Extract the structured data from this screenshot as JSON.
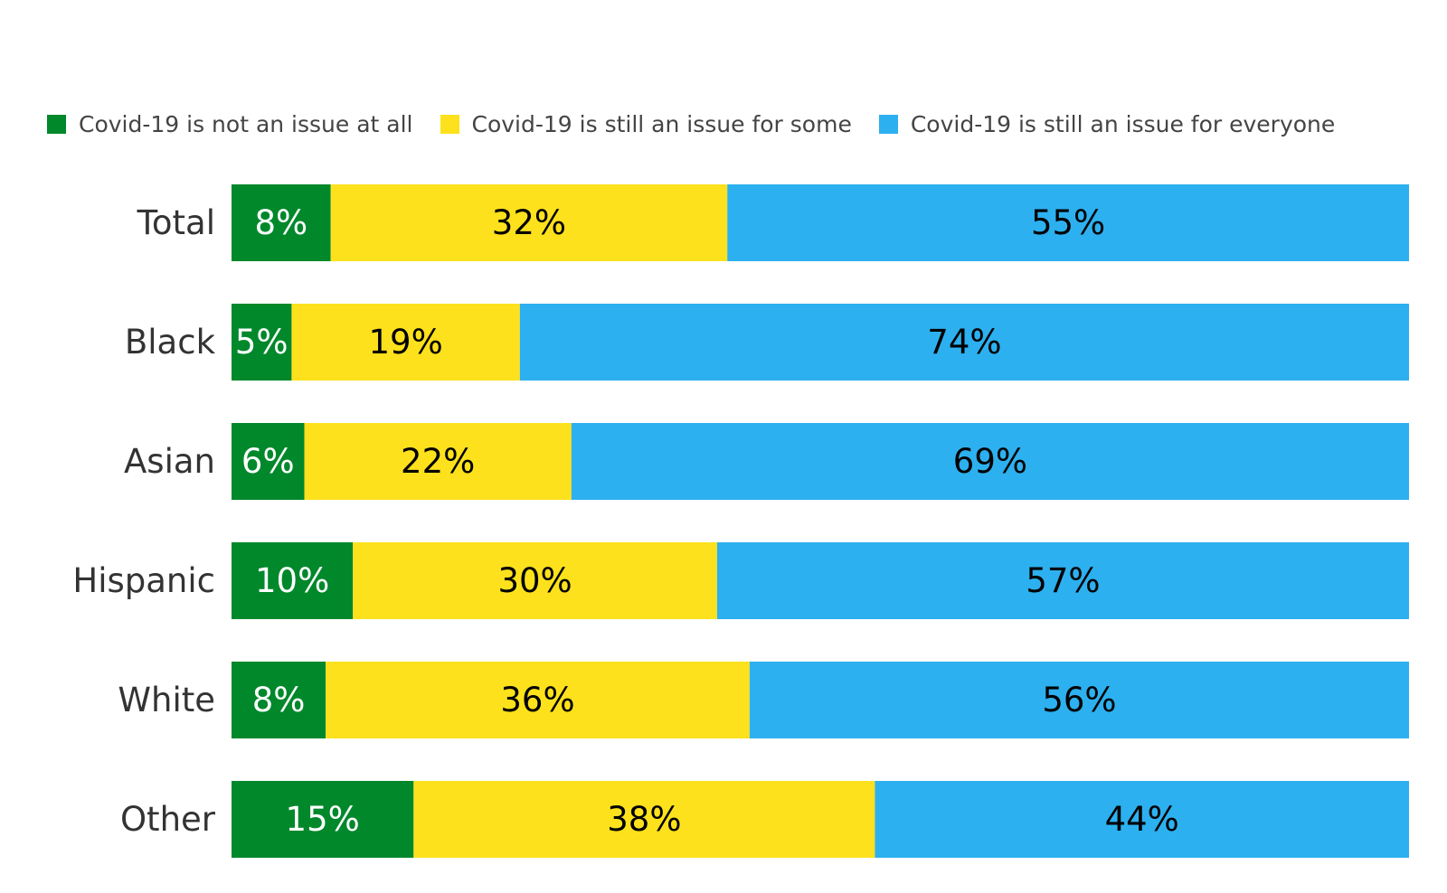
{
  "legend": [
    {
      "label": "Covid-19 is not an issue at all",
      "color": "#00882b"
    },
    {
      "label": "Covid-19 is still an issue for some",
      "color": "#fde11c"
    },
    {
      "label": "Covid-19 is still an issue for everyone",
      "color": "#2db0ef"
    }
  ],
  "chart_data": {
    "type": "bar",
    "orientation": "horizontal",
    "stacked": true,
    "categories": [
      "Total",
      "Black",
      "Asian",
      "Hispanic",
      "White",
      "Other"
    ],
    "series": [
      {
        "name": "Covid-19 is not an issue at all",
        "values": [
          8,
          5,
          6,
          10,
          8,
          15
        ],
        "color": "#00882b",
        "label_color": "#ffffff"
      },
      {
        "name": "Covid-19 is still an issue for some",
        "values": [
          32,
          19,
          22,
          30,
          36,
          38
        ],
        "color": "#fde11c",
        "label_color": "#000000"
      },
      {
        "name": "Covid-19 is still an issue for everyone",
        "values": [
          55,
          74,
          69,
          57,
          56,
          44
        ],
        "color": "#2db0ef",
        "label_color": "#000000"
      }
    ],
    "data_labels": [
      [
        "8%",
        "5%",
        "6%",
        "10%",
        "8%",
        "15%"
      ],
      [
        "32%",
        "19%",
        "22%",
        "30%",
        "36%",
        "38%"
      ],
      [
        "55%",
        "74%",
        "69%",
        "57%",
        "56%",
        "44%"
      ]
    ],
    "title": "",
    "xlabel": "",
    "ylabel": "",
    "grid": false,
    "legend_position": "top"
  }
}
